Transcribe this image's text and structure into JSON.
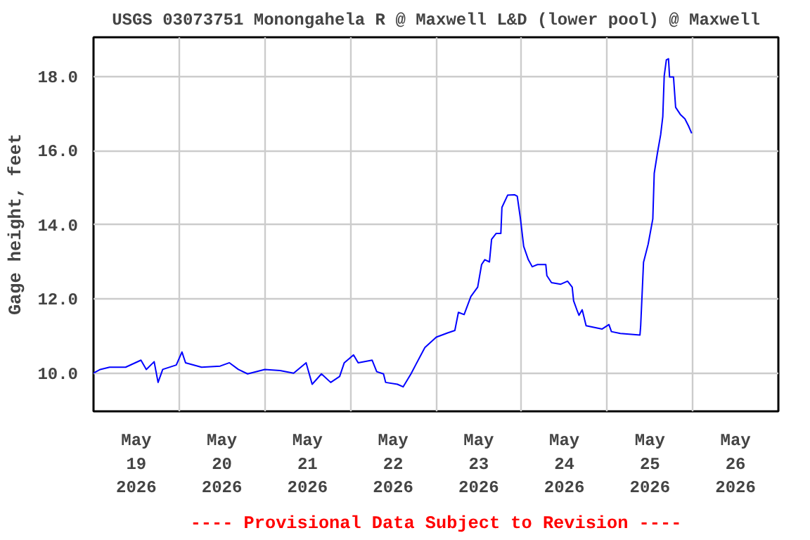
{
  "chart_data": {
    "type": "line",
    "title": "USGS 03073751 Monongahela R @ Maxwell L&D (lower pool) @ Maxwell",
    "ylabel": "Gage height, feet",
    "annotations": [
      "---- Provisional Data Subject to Revision ----"
    ],
    "grid": true,
    "marker": "none",
    "line_style": "solid",
    "xlim": [
      "2026-05-19T00:00",
      "2026-05-27T00:00"
    ],
    "ylim": [
      8.97,
      19.06
    ],
    "yticks": [
      {
        "value": 10,
        "label": "10.0"
      },
      {
        "value": 12,
        "label": "12.0"
      },
      {
        "value": 14,
        "label": "14.0"
      },
      {
        "value": 16,
        "label": "16.0"
      },
      {
        "value": 18,
        "label": "18.0"
      }
    ],
    "xticks": [
      {
        "value": "2026-05-19T12:00",
        "label": "May\n19\n2026"
      },
      {
        "value": "2026-05-20T00:00",
        "label": null
      },
      {
        "value": "2026-05-20T12:00",
        "label": "May\n20\n2026"
      },
      {
        "value": "2026-05-21T00:00",
        "label": null
      },
      {
        "value": "2026-05-21T12:00",
        "label": "May\n21\n2026"
      },
      {
        "value": "2026-05-22T00:00",
        "label": null
      },
      {
        "value": "2026-05-22T12:00",
        "label": "May\n22\n2026"
      },
      {
        "value": "2026-05-23T00:00",
        "label": null
      },
      {
        "value": "2026-05-23T12:00",
        "label": "May\n23\n2026"
      },
      {
        "value": "2026-05-24T00:00",
        "label": null
      },
      {
        "value": "2026-05-24T12:00",
        "label": "May\n24\n2026"
      },
      {
        "value": "2026-05-25T00:00",
        "label": null
      },
      {
        "value": "2026-05-25T12:00",
        "label": "May\n25\n2026"
      },
      {
        "value": "2026-05-26T00:00",
        "label": null
      },
      {
        "value": "2026-05-26T12:00",
        "label": "May\n26\n2026"
      }
    ],
    "series": [
      {
        "color": "#0000ff",
        "x": [
          "2026-05-19T00:00",
          "2026-05-19T01:54",
          "2026-05-19T04:30",
          "2026-05-19T09:00",
          "2026-05-19T13:18",
          "2026-05-19T14:48",
          "2026-05-19T17:00",
          "2026-05-19T18:06",
          "2026-05-19T19:24",
          "2026-05-19T23:12",
          "2026-05-20T00:48",
          "2026-05-20T01:48",
          "2026-05-20T06:18",
          "2026-05-20T11:30",
          "2026-05-20T14:06",
          "2026-05-20T16:36",
          "2026-05-20T19:12",
          "2026-05-21T00:00",
          "2026-05-21T04:18",
          "2026-05-21T08:06",
          "2026-05-21T11:36",
          "2026-05-21T13:18",
          "2026-05-21T15:54",
          "2026-05-21T18:30",
          "2026-05-21T21:00",
          "2026-05-21T22:18",
          "2026-05-22T00:54",
          "2026-05-22T02:12",
          "2026-05-22T06:06",
          "2026-05-22T07:24",
          "2026-05-22T09:18",
          "2026-05-22T09:54",
          "2026-05-22T13:12",
          "2026-05-22T14:48",
          "2026-05-22T17:00",
          "2026-05-22T18:18",
          "2026-05-22T20:54",
          "2026-05-23T00:06",
          "2026-05-23T03:24",
          "2026-05-23T05:18",
          "2026-05-23T06:18",
          "2026-05-23T07:54",
          "2026-05-23T09:48",
          "2026-05-23T11:42",
          "2026-05-23T12:48",
          "2026-05-23T13:42",
          "2026-05-23T15:00",
          "2026-05-23T15:36",
          "2026-05-23T16:54",
          "2026-05-23T18:12",
          "2026-05-23T18:30",
          "2026-05-23T20:06",
          "2026-05-23T22:06",
          "2026-05-23T22:48",
          "2026-05-23T23:42",
          "2026-05-24T00:36",
          "2026-05-24T01:54",
          "2026-05-24T03:00",
          "2026-05-24T04:30",
          "2026-05-24T06:48",
          "2026-05-24T07:06",
          "2026-05-24T08:24",
          "2026-05-24T11:00",
          "2026-05-24T12:54",
          "2026-05-24T14:12",
          "2026-05-24T14:36",
          "2026-05-24T15:30",
          "2026-05-24T16:06",
          "2026-05-24T17:00",
          "2026-05-24T18:06",
          "2026-05-24T20:00",
          "2026-05-24T22:36",
          "2026-05-25T00:30",
          "2026-05-25T01:12",
          "2026-05-25T03:42",
          "2026-05-25T09:12",
          "2026-05-25T09:24",
          "2026-05-25T09:48",
          "2026-05-25T10:12",
          "2026-05-25T11:30",
          "2026-05-25T12:48",
          "2026-05-25T13:12",
          "2026-05-25T14:06",
          "2026-05-25T15:00",
          "2026-05-25T15:36",
          "2026-05-25T16:00",
          "2026-05-25T16:36",
          "2026-05-25T17:12",
          "2026-05-25T17:30",
          "2026-05-25T18:36",
          "2026-05-25T19:12",
          "2026-05-25T20:30",
          "2026-05-25T21:48",
          "2026-05-25T22:48",
          "2026-05-25T23:42"
        ],
        "values": [
          10.0,
          10.1,
          10.16,
          10.16,
          10.35,
          10.1,
          10.31,
          9.75,
          10.1,
          10.22,
          10.57,
          10.28,
          10.16,
          10.19,
          10.28,
          10.1,
          9.98,
          10.1,
          10.07,
          10.0,
          10.28,
          9.7,
          9.98,
          9.75,
          9.91,
          10.28,
          10.49,
          10.28,
          10.35,
          10.04,
          9.98,
          9.75,
          9.7,
          9.63,
          9.98,
          10.22,
          10.69,
          10.97,
          11.09,
          11.15,
          11.64,
          11.58,
          12.07,
          12.32,
          12.93,
          13.06,
          13.0,
          13.61,
          13.77,
          13.77,
          14.47,
          14.8,
          14.81,
          14.77,
          14.16,
          13.42,
          13.06,
          12.87,
          12.93,
          12.93,
          12.63,
          12.44,
          12.4,
          12.48,
          12.32,
          11.95,
          11.71,
          11.56,
          11.71,
          11.28,
          11.24,
          11.19,
          11.31,
          11.12,
          11.07,
          11.03,
          11.28,
          12.13,
          12.99,
          13.48,
          14.16,
          15.39,
          15.94,
          16.43,
          16.92,
          18.02,
          18.45,
          18.48,
          17.99,
          17.99,
          17.17,
          16.98,
          16.86,
          16.67,
          16.47
        ]
      }
    ]
  }
}
